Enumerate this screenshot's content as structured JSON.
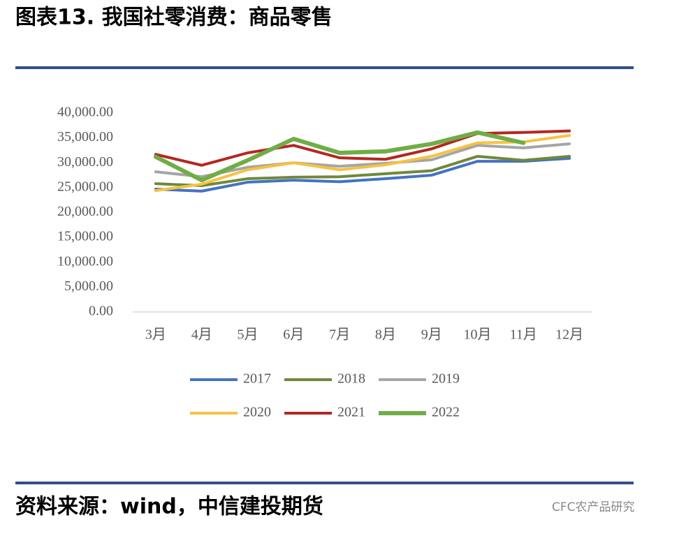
{
  "header": {
    "title": "图表13. 我国社零消费：商品零售"
  },
  "chart_data": {
    "type": "line",
    "categories": [
      "3月",
      "4月",
      "5月",
      "6月",
      "7月",
      "8月",
      "9月",
      "10月",
      "11月",
      "12月"
    ],
    "series": [
      {
        "name": "2017",
        "color": "#4472c4",
        "values": [
          24700,
          24300,
          26100,
          26500,
          26200,
          26800,
          27500,
          30300,
          30300,
          30900
        ]
      },
      {
        "name": "2018",
        "color": "#70883a",
        "values": [
          25800,
          25400,
          26800,
          27100,
          27200,
          27800,
          28400,
          31300,
          30500,
          31300
        ]
      },
      {
        "name": "2019",
        "color": "#a5a5a5",
        "values": [
          28200,
          27200,
          29100,
          30000,
          29300,
          29900,
          30600,
          33500,
          33000,
          33800
        ]
      },
      {
        "name": "2020",
        "color": "#f5c242",
        "values": [
          24400,
          25700,
          28600,
          30000,
          28600,
          29600,
          31300,
          34000,
          34200,
          35500
        ]
      },
      {
        "name": "2021",
        "color": "#b5271f",
        "values": [
          31700,
          29500,
          32000,
          33500,
          31000,
          30700,
          32800,
          35900,
          36100,
          36400
        ]
      },
      {
        "name": "2022",
        "color": "#70ad47",
        "values": [
          31200,
          26500,
          30500,
          34800,
          32000,
          32300,
          33800,
          36100,
          34000,
          null
        ]
      }
    ],
    "ylim": [
      0,
      40000
    ],
    "yticks": [
      {
        "value": 0,
        "label": "0.00"
      },
      {
        "value": 5000,
        "label": "5,000.00"
      },
      {
        "value": 10000,
        "label": "10,000.00"
      },
      {
        "value": 15000,
        "label": "15,000.00"
      },
      {
        "value": 20000,
        "label": "20,000.00"
      },
      {
        "value": 25000,
        "label": "25,000.00"
      },
      {
        "value": 30000,
        "label": "30,000.00"
      },
      {
        "value": 35000,
        "label": "35,000.00"
      },
      {
        "value": 40000,
        "label": "40,000.00"
      }
    ]
  },
  "footer": {
    "source": "资料来源：wind，中信建投期货",
    "watermark": "CFC农产品研究"
  }
}
